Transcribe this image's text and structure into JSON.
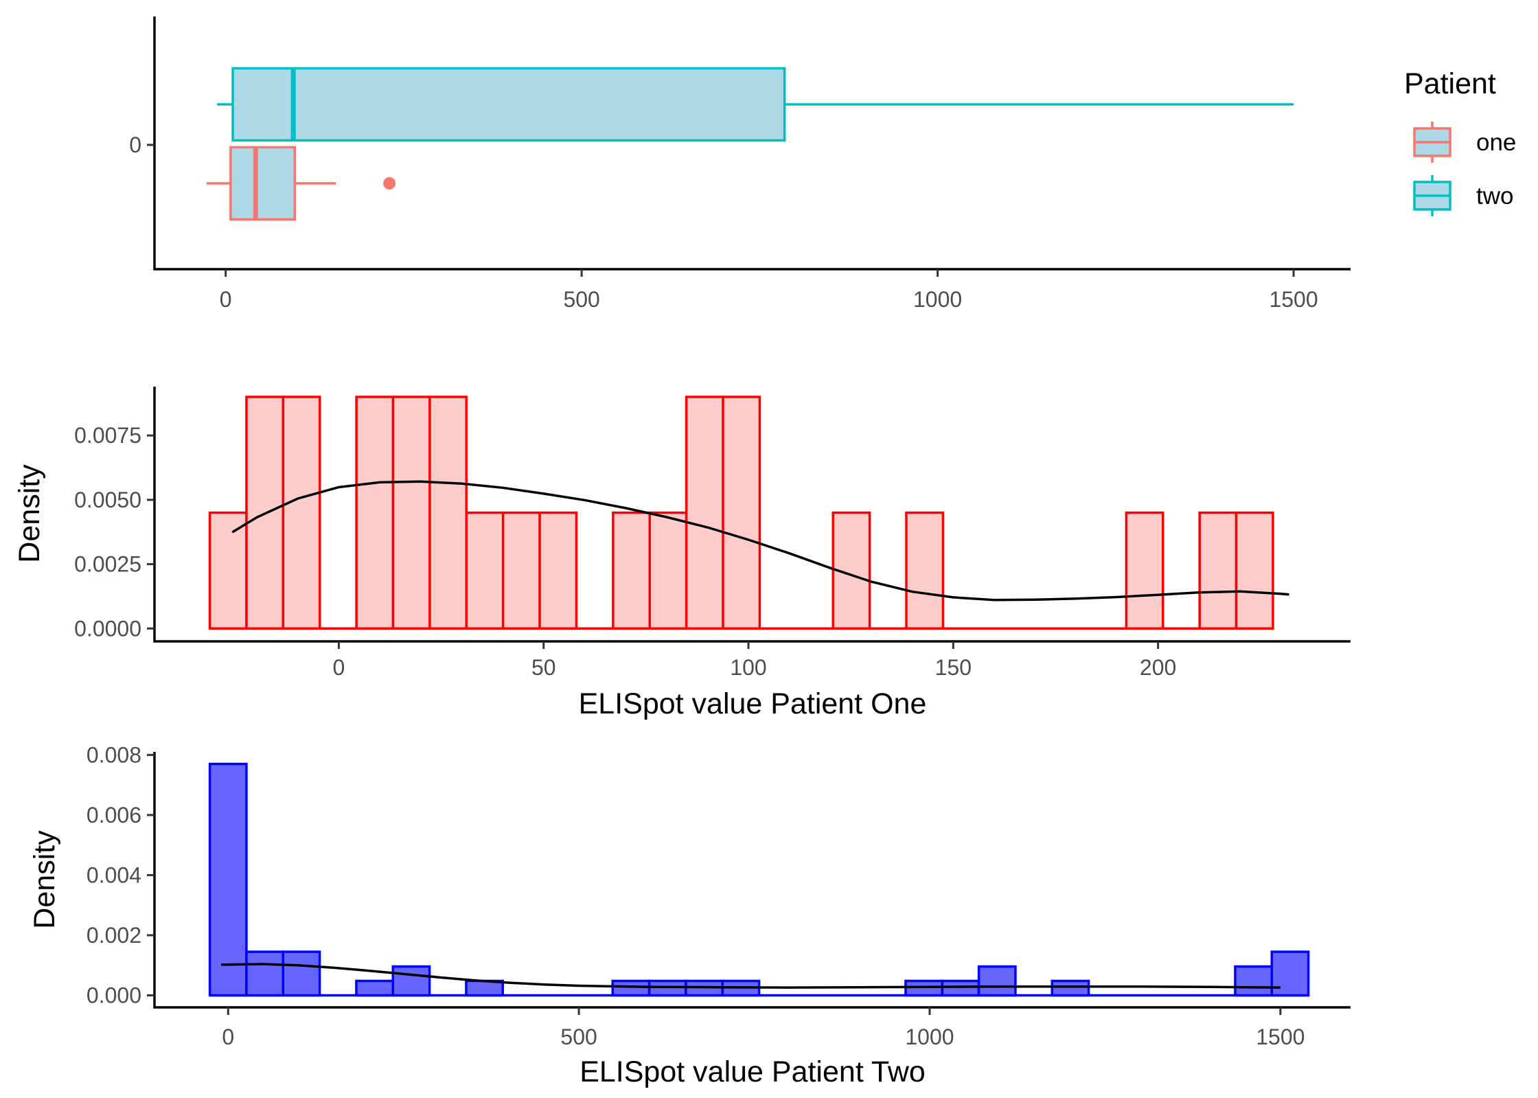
{
  "chart_data": [
    {
      "type": "boxplot",
      "title": "",
      "xlabel": "",
      "ylabel": "",
      "xlim": [
        -100,
        1580
      ],
      "x_ticks": [
        0,
        500,
        1000,
        1500
      ],
      "y_tick_labels": [
        "0"
      ],
      "legend": {
        "title": "Patient",
        "placement": "right",
        "entries": [
          {
            "label": "one",
            "color": "#F8766D"
          },
          {
            "label": "two",
            "color": "#00BFC4"
          }
        ]
      },
      "fill_color": "#ADD8E6",
      "boxes": [
        {
          "name": "two",
          "color": "#00BFC4",
          "whisker_low": -12,
          "q1": 10,
          "median": 95,
          "q3": 785,
          "whisker_high": 1500,
          "outliers": []
        },
        {
          "name": "one",
          "color": "#F8766D",
          "whisker_low": -27,
          "q1": 7,
          "median": 42,
          "q3": 97,
          "whisker_high": 155,
          "outliers": [
            230
          ]
        }
      ]
    },
    {
      "type": "histogram",
      "title": "",
      "xlabel": "ELISpot value Patient One",
      "ylabel": "Density",
      "xlim": [
        -45,
        247
      ],
      "ylim": [
        -0.0005,
        0.0094
      ],
      "x_ticks": [
        0,
        50,
        100,
        150,
        200
      ],
      "y_ticks": [
        0.0,
        0.0025,
        0.005,
        0.0075
      ],
      "y_tick_labels": [
        "0.0000",
        "0.0025",
        "0.0050",
        "0.0075"
      ],
      "bin_width": 8.95,
      "bin_start": -31.5,
      "bar_fill": "#FFCCCC",
      "bar_stroke": "#FF0000",
      "density": [
        0.0045,
        0.009,
        0.009,
        0,
        0.009,
        0.009,
        0.009,
        0.0045,
        0.0045,
        0.0045,
        0,
        0.0045,
        0.0045,
        0.009,
        0.009,
        0,
        0,
        0.0045,
        0,
        0.0045,
        0,
        0,
        0,
        0,
        0,
        0.0045,
        0,
        0.0045,
        0.0045
      ],
      "kde_curve": [
        [
          -26,
          0.00374
        ],
        [
          -20,
          0.00432
        ],
        [
          -10,
          0.00505
        ],
        [
          0,
          0.00549
        ],
        [
          10,
          0.00568
        ],
        [
          20,
          0.00571
        ],
        [
          30,
          0.00563
        ],
        [
          40,
          0.00547
        ],
        [
          50,
          0.00524
        ],
        [
          60,
          0.00499
        ],
        [
          70,
          0.00468
        ],
        [
          80,
          0.00433
        ],
        [
          90,
          0.00393
        ],
        [
          100,
          0.00345
        ],
        [
          110,
          0.00292
        ],
        [
          120,
          0.00235
        ],
        [
          130,
          0.00182
        ],
        [
          140,
          0.00143
        ],
        [
          150,
          0.00121
        ],
        [
          160,
          0.00111
        ],
        [
          170,
          0.00112
        ],
        [
          180,
          0.00116
        ],
        [
          190,
          0.00122
        ],
        [
          200,
          0.00131
        ],
        [
          210,
          0.0014
        ],
        [
          220,
          0.00144
        ],
        [
          230,
          0.00135
        ],
        [
          232,
          0.00132
        ]
      ]
    },
    {
      "type": "histogram",
      "title": "",
      "xlabel": "ELISpot value Patient Two",
      "ylabel": "Density",
      "xlim": [
        -105,
        1600
      ],
      "ylim": [
        -0.0004,
        0.0081
      ],
      "x_ticks": [
        0,
        500,
        1000,
        1500
      ],
      "y_ticks": [
        0.0,
        0.002,
        0.004,
        0.006,
        0.008
      ],
      "y_tick_labels": [
        "0.000",
        "0.002",
        "0.004",
        "0.006",
        "0.008"
      ],
      "bin_width": 52.2,
      "bin_start": -26.1,
      "bar_fill": "#6666FF",
      "bar_stroke": "#0000FF",
      "density": [
        0.0077,
        0.00145,
        0.00145,
        0,
        0.00048,
        0.00096,
        0,
        0.00048,
        0,
        0,
        0,
        0.00048,
        0.00048,
        0.00048,
        0.00048,
        0,
        0,
        0,
        0,
        0.00048,
        0.00048,
        0.00096,
        0,
        0.00048,
        0,
        0,
        0,
        0,
        0.00096,
        0.00145
      ],
      "kde_curve": [
        [
          -10,
          0.00102
        ],
        [
          50,
          0.00104
        ],
        [
          100,
          0.001
        ],
        [
          150,
          0.00092
        ],
        [
          200,
          0.00082
        ],
        [
          250,
          0.00071
        ],
        [
          300,
          0.0006
        ],
        [
          350,
          0.0005
        ],
        [
          400,
          0.00042
        ],
        [
          450,
          0.00036
        ],
        [
          500,
          0.00032
        ],
        [
          550,
          0.0003
        ],
        [
          600,
          0.00028
        ],
        [
          700,
          0.00027
        ],
        [
          800,
          0.00026
        ],
        [
          900,
          0.00027
        ],
        [
          1000,
          0.00028
        ],
        [
          1100,
          0.00029
        ],
        [
          1200,
          0.00029
        ],
        [
          1300,
          0.00029
        ],
        [
          1400,
          0.00028
        ],
        [
          1450,
          0.00027
        ],
        [
          1500,
          0.00026
        ]
      ]
    }
  ]
}
